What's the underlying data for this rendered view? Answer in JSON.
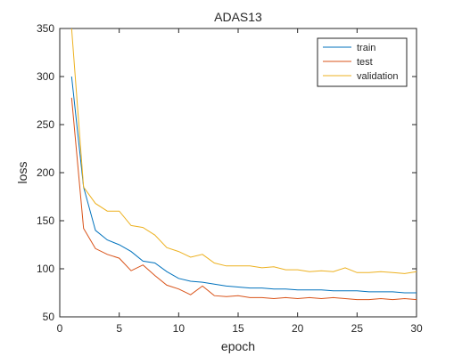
{
  "chart_data": {
    "type": "line",
    "title": "ADAS13",
    "xlabel": "epoch",
    "ylabel": "loss",
    "xlim": [
      0,
      30
    ],
    "ylim": [
      50,
      350
    ],
    "xticks": [
      0,
      5,
      10,
      15,
      20,
      25,
      30
    ],
    "yticks": [
      50,
      100,
      150,
      200,
      250,
      300,
      350
    ],
    "grid": false,
    "legend_position": "top-right",
    "x": [
      1,
      2,
      3,
      4,
      5,
      6,
      7,
      8,
      9,
      10,
      11,
      12,
      13,
      14,
      15,
      16,
      17,
      18,
      19,
      20,
      21,
      22,
      23,
      24,
      25,
      26,
      27,
      28,
      29,
      30
    ],
    "series": [
      {
        "name": "train",
        "color": "#0072BD",
        "values": [
          300,
          185,
          140,
          130,
          125,
          118,
          108,
          106,
          97,
          90,
          87,
          86,
          84,
          82,
          81,
          80,
          80,
          79,
          79,
          78,
          78,
          78,
          77,
          77,
          77,
          76,
          76,
          76,
          75,
          75
        ]
      },
      {
        "name": "test",
        "color": "#D95319",
        "values": [
          278,
          142,
          121,
          115,
          111,
          98,
          104,
          93,
          83,
          79,
          73,
          82,
          72,
          71,
          72,
          70,
          70,
          69,
          70,
          69,
          70,
          69,
          70,
          69,
          68,
          68,
          69,
          68,
          69,
          68
        ]
      },
      {
        "name": "validation",
        "color": "#EDB120",
        "values": [
          350,
          185,
          168,
          160,
          160,
          145,
          143,
          135,
          122,
          118,
          112,
          115,
          106,
          103,
          103,
          103,
          101,
          102,
          99,
          99,
          97,
          98,
          97,
          101,
          96,
          96,
          97,
          96,
          95,
          97
        ]
      }
    ]
  }
}
